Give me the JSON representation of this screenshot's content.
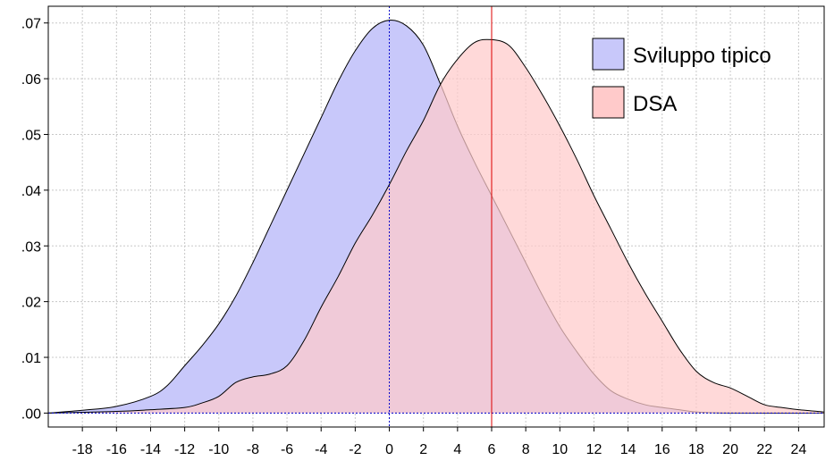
{
  "chart_data": {
    "type": "area",
    "title": "",
    "xlabel": "",
    "ylabel": "",
    "xlim": [
      -20,
      25.5
    ],
    "ylim": [
      -0.0025,
      0.073
    ],
    "x_ticks": [
      -18,
      -16,
      -14,
      -12,
      -10,
      -8,
      -6,
      -4,
      -2,
      0,
      2,
      4,
      6,
      8,
      10,
      12,
      14,
      16,
      18,
      20,
      22,
      24
    ],
    "x_tick_labels": [
      "-18",
      "-16",
      "-14",
      "-12",
      "-10",
      "-8",
      "-6",
      "-4",
      "-2",
      "0",
      "2",
      "4",
      "6",
      "8",
      "10",
      "12",
      "14",
      "16",
      "18",
      "20",
      "22",
      "24"
    ],
    "y_ticks": [
      0,
      0.01,
      0.02,
      0.03,
      0.04,
      0.05,
      0.06,
      0.07
    ],
    "y_tick_labels": [
      ".00",
      ".01",
      ".02",
      ".03",
      ".04",
      ".05",
      ".06",
      ".07"
    ],
    "grid": true,
    "legend_position": "top-right",
    "reference_lines": [
      {
        "x": 0,
        "color": "#0000cc",
        "style": "dotted"
      },
      {
        "x": 6,
        "color": "#dd0000",
        "style": "solid"
      }
    ],
    "series": [
      {
        "name": "Sviluppo tipico",
        "fill": "#c8c8fa",
        "stroke": "#000000",
        "points": [
          [
            -20,
            0.0
          ],
          [
            -18,
            0.0005
          ],
          [
            -16,
            0.0012
          ],
          [
            -14,
            0.003
          ],
          [
            -13,
            0.005
          ],
          [
            -12,
            0.0085
          ],
          [
            -11,
            0.012
          ],
          [
            -10,
            0.016
          ],
          [
            -9,
            0.021
          ],
          [
            -8,
            0.027
          ],
          [
            -7,
            0.0335
          ],
          [
            -6,
            0.04
          ],
          [
            -5,
            0.0465
          ],
          [
            -4,
            0.053
          ],
          [
            -3,
            0.0595
          ],
          [
            -2,
            0.065
          ],
          [
            -1,
            0.069
          ],
          [
            0,
            0.0705
          ],
          [
            1,
            0.0695
          ],
          [
            2,
            0.066
          ],
          [
            3,
            0.059
          ],
          [
            4,
            0.0515
          ],
          [
            5,
            0.045
          ],
          [
            6,
            0.039
          ],
          [
            7,
            0.033
          ],
          [
            8,
            0.027
          ],
          [
            9,
            0.021
          ],
          [
            10,
            0.0155
          ],
          [
            11,
            0.011
          ],
          [
            12,
            0.007
          ],
          [
            13,
            0.004
          ],
          [
            14,
            0.0025
          ],
          [
            15,
            0.0015
          ],
          [
            16,
            0.001
          ],
          [
            17,
            0.0006
          ],
          [
            18,
            0.0002
          ],
          [
            20,
            0.0
          ],
          [
            25.5,
            0.0
          ]
        ]
      },
      {
        "name": "DSA",
        "fill": "#ffcaca",
        "stroke": "#000000",
        "points": [
          [
            -20,
            0.0
          ],
          [
            -16,
            0.0003
          ],
          [
            -14,
            0.0006
          ],
          [
            -12,
            0.001
          ],
          [
            -11,
            0.0018
          ],
          [
            -10,
            0.003
          ],
          [
            -9,
            0.0055
          ],
          [
            -8,
            0.0065
          ],
          [
            -7,
            0.007
          ],
          [
            -6,
            0.0085
          ],
          [
            -5,
            0.013
          ],
          [
            -4,
            0.019
          ],
          [
            -3,
            0.0245
          ],
          [
            -2,
            0.0305
          ],
          [
            -1,
            0.0355
          ],
          [
            0,
            0.041
          ],
          [
            1,
            0.047
          ],
          [
            2,
            0.0525
          ],
          [
            3,
            0.059
          ],
          [
            4,
            0.0635
          ],
          [
            5,
            0.0665
          ],
          [
            6,
            0.067
          ],
          [
            7,
            0.066
          ],
          [
            8,
            0.062
          ],
          [
            9,
            0.057
          ],
          [
            10,
            0.0515
          ],
          [
            11,
            0.0455
          ],
          [
            12,
            0.039
          ],
          [
            13,
            0.033
          ],
          [
            14,
            0.027
          ],
          [
            15,
            0.0215
          ],
          [
            16,
            0.0165
          ],
          [
            17,
            0.0115
          ],
          [
            18,
            0.0075
          ],
          [
            19,
            0.0055
          ],
          [
            20,
            0.0045
          ],
          [
            21,
            0.003
          ],
          [
            22,
            0.0015
          ],
          [
            23,
            0.001
          ],
          [
            24,
            0.0006
          ],
          [
            25.5,
            0.0002
          ]
        ]
      }
    ]
  },
  "legend": [
    {
      "label": "Sviluppo tipico",
      "color": "#c8c8fa"
    },
    {
      "label": "DSA",
      "color": "#ffcaca"
    }
  ]
}
